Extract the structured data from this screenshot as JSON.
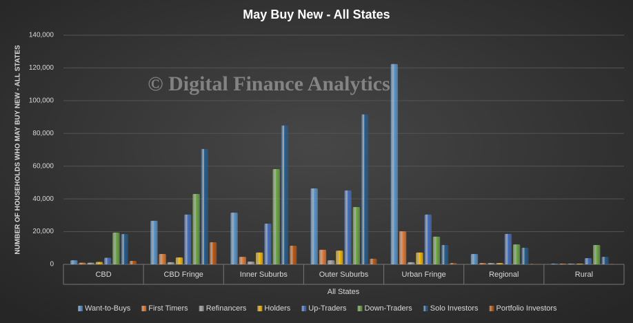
{
  "chart_data": {
    "type": "bar",
    "title": "May Buy New - All States",
    "watermark": "© Digital Finance Analytics",
    "y_label": "NUMBER OF HOUSEHOLDS WHO MAY BUY NEW - ALL STATES",
    "x_label": "All States",
    "categories": [
      "CBD",
      "CBD Fringe",
      "Inner Suburbs",
      "Outer Suburbs",
      "Urban Fringe",
      "Regional",
      "Rural"
    ],
    "series": [
      {
        "name": "Want-to-Buys",
        "color": "#5b9bd5",
        "values": [
          2500,
          26600,
          31600,
          46400,
          122400,
          6300,
          400
        ]
      },
      {
        "name": "First Timers",
        "color": "#ed7d31",
        "values": [
          1000,
          6300,
          4600,
          8900,
          20200,
          800,
          400
        ]
      },
      {
        "name": "Refinancers",
        "color": "#a5a5a5",
        "values": [
          1000,
          1300,
          1700,
          2500,
          1300,
          800,
          400
        ]
      },
      {
        "name": "Holders",
        "color": "#ffc000",
        "values": [
          1500,
          4200,
          7200,
          8400,
          7200,
          800,
          400
        ]
      },
      {
        "name": "Up-Traders",
        "color": "#4472c4",
        "values": [
          4000,
          30400,
          24900,
          45100,
          30400,
          18600,
          3800
        ]
      },
      {
        "name": "Down-Traders",
        "color": "#70ad47",
        "values": [
          19400,
          43000,
          58200,
          35000,
          16900,
          12200,
          11800
        ]
      },
      {
        "name": "Solo Investors",
        "color": "#255e91",
        "values": [
          18500,
          70500,
          84800,
          91600,
          11800,
          10100,
          4600
        ]
      },
      {
        "name": "Portfolio Investors",
        "color": "#c55a11",
        "values": [
          2100,
          13500,
          11400,
          3400,
          800,
          200,
          100
        ]
      }
    ],
    "ylim": [
      0,
      140000
    ],
    "yticks": [
      0,
      {
        "value": 20000,
        "label": "20,000"
      },
      {
        "value": 40000,
        "label": "40,000"
      },
      {
        "value": 60000,
        "label": "60,000"
      },
      {
        "value": 80000,
        "label": "80,000"
      },
      {
        "value": 100000,
        "label": "100,000"
      },
      {
        "value": 120000,
        "label": "120,000"
      },
      {
        "value": 140000,
        "label": "140,000"
      }
    ],
    "grid": true,
    "legend": "bottom"
  }
}
